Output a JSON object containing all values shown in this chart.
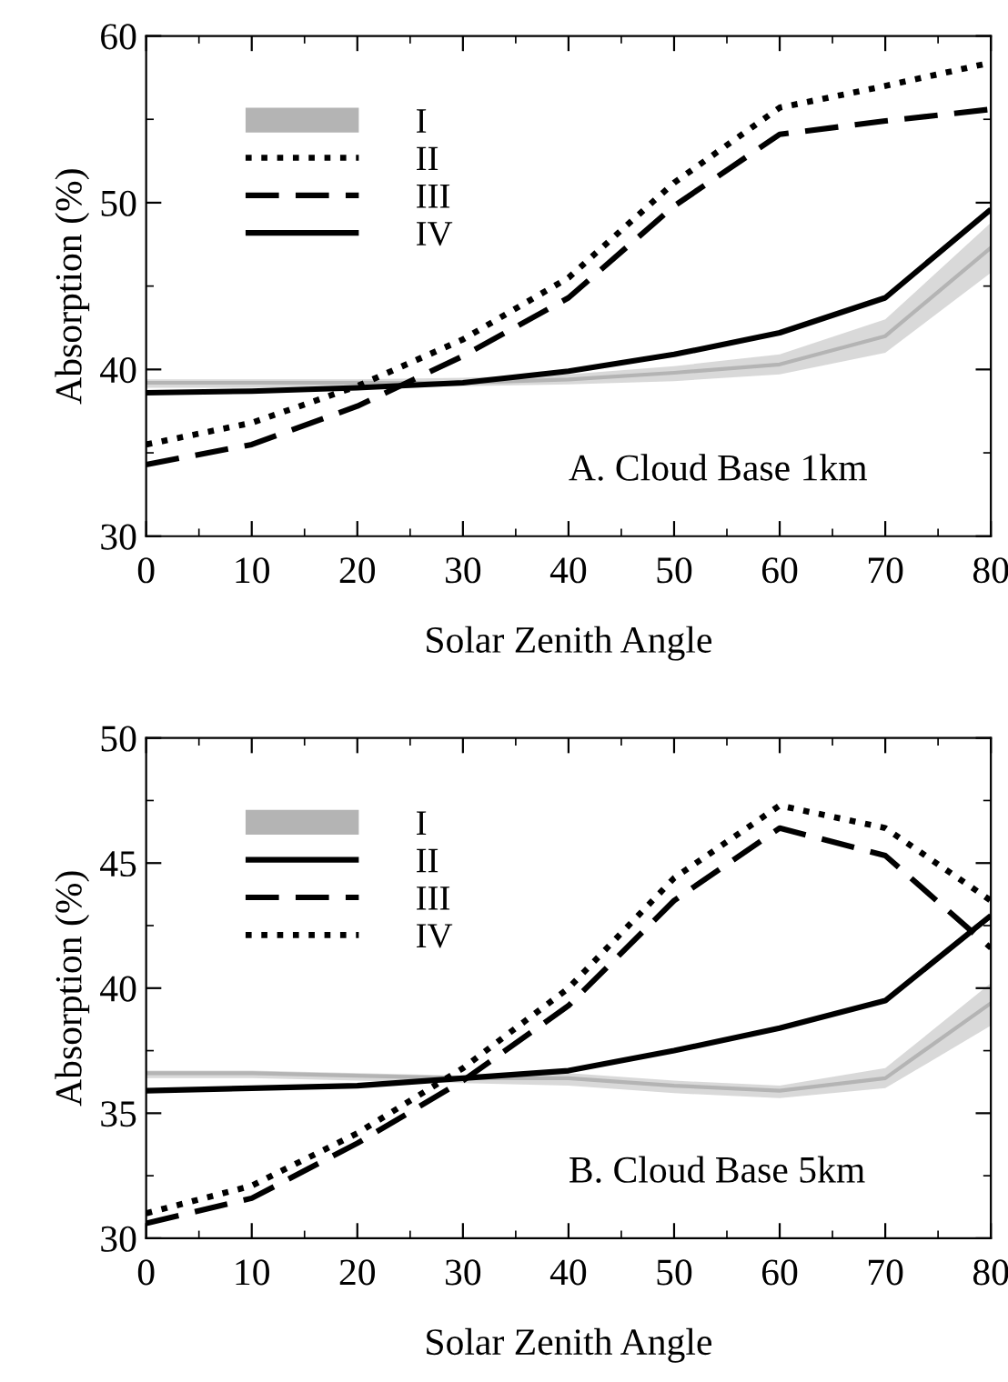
{
  "chart_data": [
    {
      "type": "line",
      "xlabel": "Solar Zenith Angle",
      "ylabel": "Absorption (%)",
      "x": [
        0,
        10,
        20,
        30,
        40,
        50,
        60,
        70,
        80
      ],
      "xlim": [
        0,
        80
      ],
      "xticks": [
        0,
        10,
        20,
        30,
        40,
        50,
        60,
        70,
        80
      ],
      "ylim": [
        30,
        60
      ],
      "yticks": [
        30,
        40,
        50,
        60
      ],
      "legend": "top left",
      "annotations": [
        "A. Cloud Base 1km"
      ],
      "series": [
        {
          "name": "I",
          "color": "#b4b4b4",
          "values": [
            39.2,
            39.2,
            39.2,
            39.2,
            39.4,
            39.8,
            40.3,
            42.0,
            47.3
          ],
          "lower": [
            38.9,
            38.9,
            38.9,
            39.0,
            39.1,
            39.3,
            39.7,
            41.0,
            45.8
          ],
          "upper": [
            39.4,
            39.4,
            39.4,
            39.5,
            39.7,
            40.2,
            40.9,
            43.0,
            48.8
          ]
        },
        {
          "name": "II",
          "color": "#000000",
          "line_style": "dotted",
          "values": [
            35.5,
            36.8,
            39.0,
            41.8,
            45.5,
            51.2,
            55.7,
            57.0,
            58.4
          ]
        },
        {
          "name": "III",
          "color": "#000000",
          "line_style": "dashed",
          "values": [
            34.3,
            35.5,
            37.8,
            40.8,
            44.3,
            49.8,
            54.1,
            54.9,
            55.6
          ]
        },
        {
          "name": "IV",
          "color": "#000000",
          "line_style": "solid",
          "values": [
            38.6,
            38.7,
            38.9,
            39.2,
            39.9,
            40.9,
            42.2,
            44.3,
            49.6
          ]
        }
      ]
    },
    {
      "type": "line",
      "xlabel": "Solar Zenith Angle",
      "ylabel": "Absorption (%)",
      "x": [
        0,
        10,
        20,
        30,
        40,
        50,
        60,
        70,
        80
      ],
      "xlim": [
        0,
        80
      ],
      "xticks": [
        0,
        10,
        20,
        30,
        40,
        50,
        60,
        70,
        80
      ],
      "ylim": [
        30,
        50
      ],
      "yticks": [
        30,
        35,
        40,
        45,
        50
      ],
      "legend": "top left",
      "annotations": [
        "B. Cloud Base 5km"
      ],
      "series": [
        {
          "name": "I",
          "color": "#b4b4b4",
          "values": [
            36.6,
            36.6,
            36.5,
            36.4,
            36.4,
            36.1,
            35.9,
            36.4,
            39.4
          ],
          "lower": [
            36.4,
            36.4,
            36.3,
            36.2,
            36.1,
            35.8,
            35.6,
            36.0,
            38.5
          ],
          "upper": [
            36.7,
            36.7,
            36.6,
            36.5,
            36.6,
            36.3,
            36.1,
            36.8,
            40.2
          ]
        },
        {
          "name": "II",
          "color": "#000000",
          "line_style": "solid",
          "values": [
            35.9,
            36.0,
            36.1,
            36.4,
            36.7,
            37.5,
            38.4,
            39.5,
            42.9
          ]
        },
        {
          "name": "III",
          "color": "#000000",
          "line_style": "dashed",
          "values": [
            30.6,
            31.6,
            33.8,
            36.3,
            39.3,
            43.5,
            46.4,
            45.3,
            41.6
          ]
        },
        {
          "name": "IV",
          "color": "#000000",
          "line_style": "dotted",
          "values": [
            31.0,
            32.1,
            34.2,
            36.8,
            40.0,
            44.4,
            47.3,
            46.4,
            43.5
          ]
        }
      ]
    }
  ]
}
